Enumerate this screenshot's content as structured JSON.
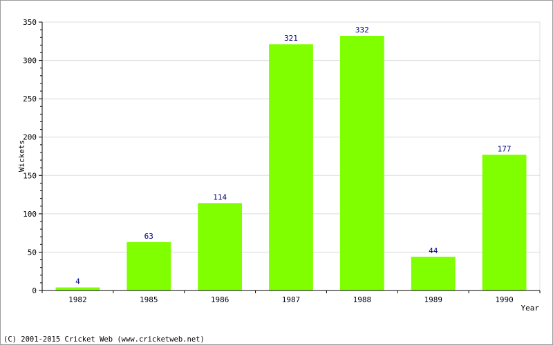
{
  "chart_data": {
    "type": "bar",
    "categories": [
      "1982",
      "1985",
      "1986",
      "1987",
      "1988",
      "1989",
      "1990"
    ],
    "values": [
      4,
      63,
      114,
      321,
      332,
      44,
      177
    ],
    "xlabel": "Year",
    "ylabel": "Wickets",
    "ylim": [
      0,
      350
    ],
    "yticks": [
      0,
      50,
      100,
      150,
      200,
      250,
      300,
      350
    ],
    "grid": true,
    "bar_color": "#80ff00",
    "value_label_color": "#000080",
    "grid_color": "#dcdcdc"
  },
  "footer": {
    "copyright": "(C) 2001-2015 Cricket Web (www.cricketweb.net)"
  }
}
